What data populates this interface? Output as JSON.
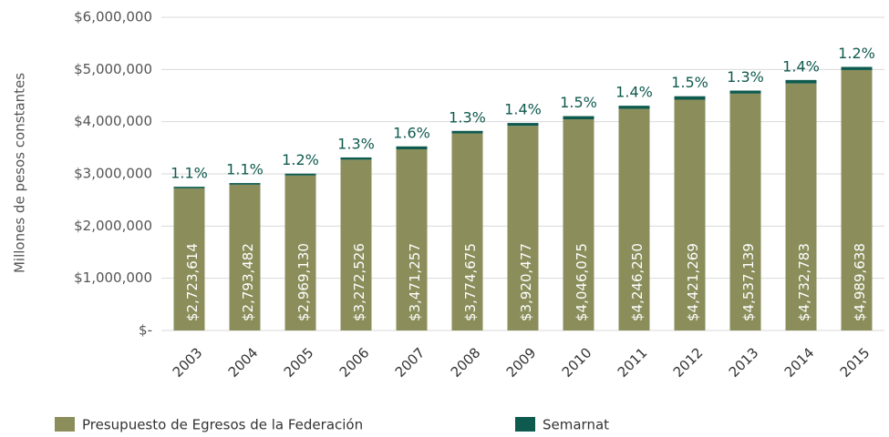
{
  "chart_data": {
    "type": "stacked-bar",
    "y_axis_label": "Millones de pesos constantes",
    "categories": [
      "2003",
      "2004",
      "2005",
      "2006",
      "2007",
      "2008",
      "2009",
      "2010",
      "2011",
      "2012",
      "2013",
      "2014",
      "2015"
    ],
    "series": [
      {
        "name": "Presupuesto de Egresos de la Federación",
        "color": "#8b8e5b",
        "values": [
          2723614,
          2793482,
          2969130,
          3272526,
          3471257,
          3774675,
          3920477,
          4046075,
          4246250,
          4421269,
          4537139,
          4732783,
          4989638
        ],
        "value_labels": [
          "$2,723,614",
          "$2,793,482",
          "$2,969,130",
          "$3,272,526",
          "$3,471,257",
          "$3,774,675",
          "$3,920,477",
          "$4,046,075",
          "$4,246,250",
          "$4,421,269",
          "$4,537,139",
          "$4,732,783",
          "$4,989,638"
        ]
      },
      {
        "name": "Semarnat",
        "color": "#0f5a4e",
        "values": [
          29960,
          30728,
          35630,
          42543,
          55540,
          49071,
          54887,
          60691,
          59448,
          66319,
          58983,
          66259,
          59876
        ],
        "share_labels": [
          "1.1%",
          "1.1%",
          "1.2%",
          "1.3%",
          "1.6%",
          "1.3%",
          "1.4%",
          "1.5%",
          "1.4%",
          "1.5%",
          "1.3%",
          "1.4%",
          "1.2%"
        ]
      }
    ],
    "ylim": [
      0,
      6000000
    ],
    "yticks": [
      {
        "value": 0,
        "label": "$-"
      },
      {
        "value": 1000000,
        "label": "$1,000,000"
      },
      {
        "value": 2000000,
        "label": "$2,000,000"
      },
      {
        "value": 3000000,
        "label": "$3,000,000"
      },
      {
        "value": 4000000,
        "label": "$4,000,000"
      },
      {
        "value": 5000000,
        "label": "$5,000,000"
      },
      {
        "value": 6000000,
        "label": "$6,000,000"
      }
    ],
    "grid": true
  }
}
